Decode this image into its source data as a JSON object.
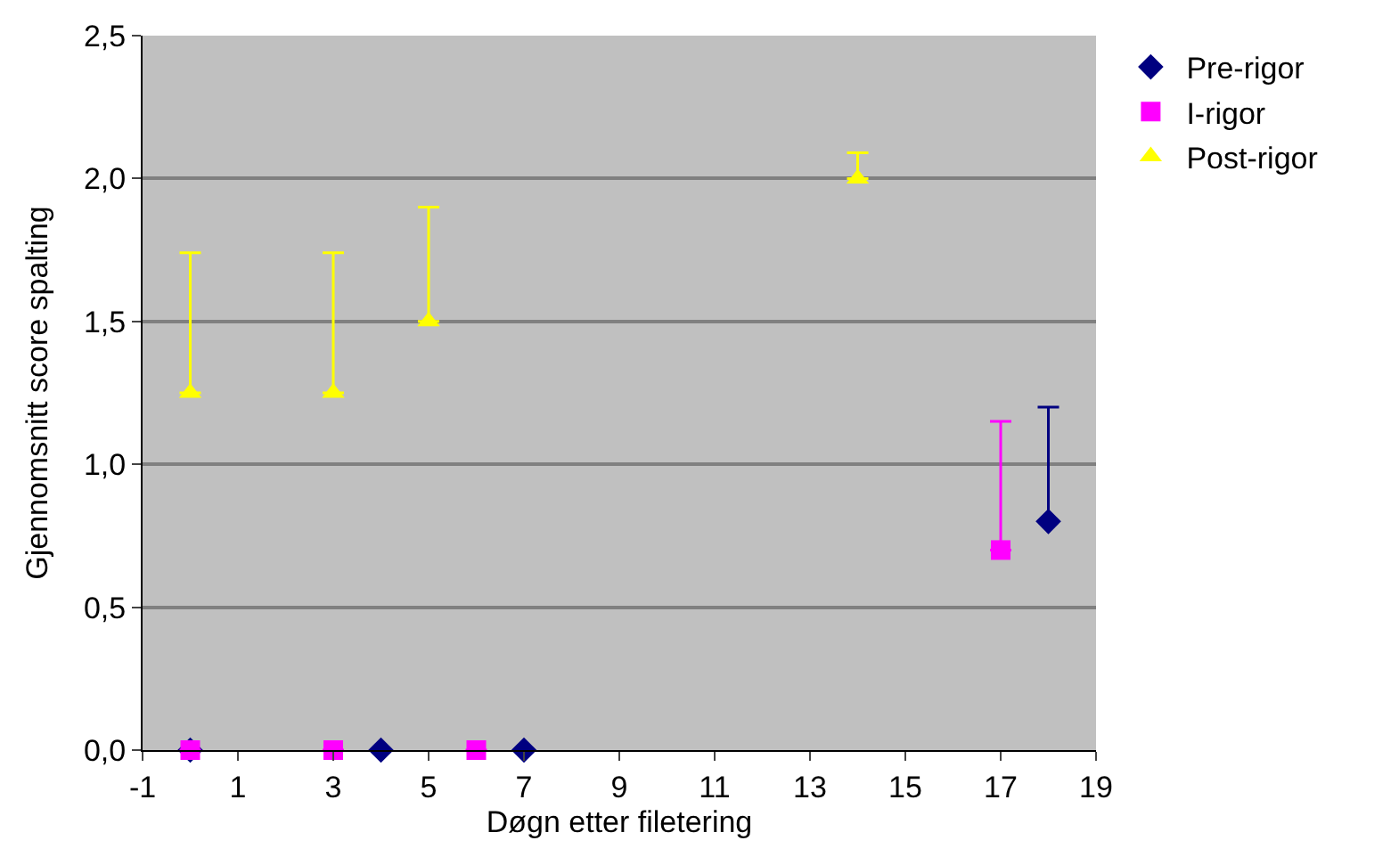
{
  "chart_data": {
    "type": "scatter",
    "xlabel": "Døgn etter filetering",
    "ylabel": "Gjennomsnitt score spalting",
    "xlim": [
      -1,
      19
    ],
    "xticks": [
      -1,
      1,
      3,
      5,
      7,
      9,
      11,
      13,
      15,
      17,
      19
    ],
    "ylim": [
      0,
      2.5
    ],
    "yticks": [
      {
        "value": 0,
        "label": "0,0"
      },
      {
        "value": 0.5,
        "label": "0,5"
      },
      {
        "value": 1,
        "label": "1,0"
      },
      {
        "value": 1.5,
        "label": "1,5"
      },
      {
        "value": 2,
        "label": "2,0"
      },
      {
        "value": 2.5,
        "label": "2,5"
      }
    ],
    "grid": "y",
    "legend": "right",
    "series": [
      {
        "name": "Pre-rigor",
        "color": "#000080",
        "marker": "diamond",
        "x": [
          0,
          4,
          7,
          18
        ],
        "values": [
          0,
          0,
          0,
          0.8
        ],
        "errors": [
          null,
          null,
          null,
          [
            0.8,
            1.2
          ]
        ]
      },
      {
        "name": "I-rigor",
        "color": "#ff00ff",
        "marker": "square",
        "x": [
          0,
          3,
          6,
          17
        ],
        "values": [
          0,
          0,
          0,
          0.7
        ],
        "errors": [
          null,
          null,
          null,
          [
            0.7,
            1.15
          ]
        ]
      },
      {
        "name": "Post-rigor",
        "color": "#ffff00",
        "marker": "triangle",
        "x": [
          0,
          3,
          5,
          14
        ],
        "values": [
          1.25,
          1.25,
          1.5,
          2.0
        ],
        "errors": [
          [
            1.25,
            1.74
          ],
          [
            1.25,
            1.74
          ],
          [
            1.5,
            1.9
          ],
          [
            2.0,
            2.09
          ]
        ]
      }
    ]
  }
}
